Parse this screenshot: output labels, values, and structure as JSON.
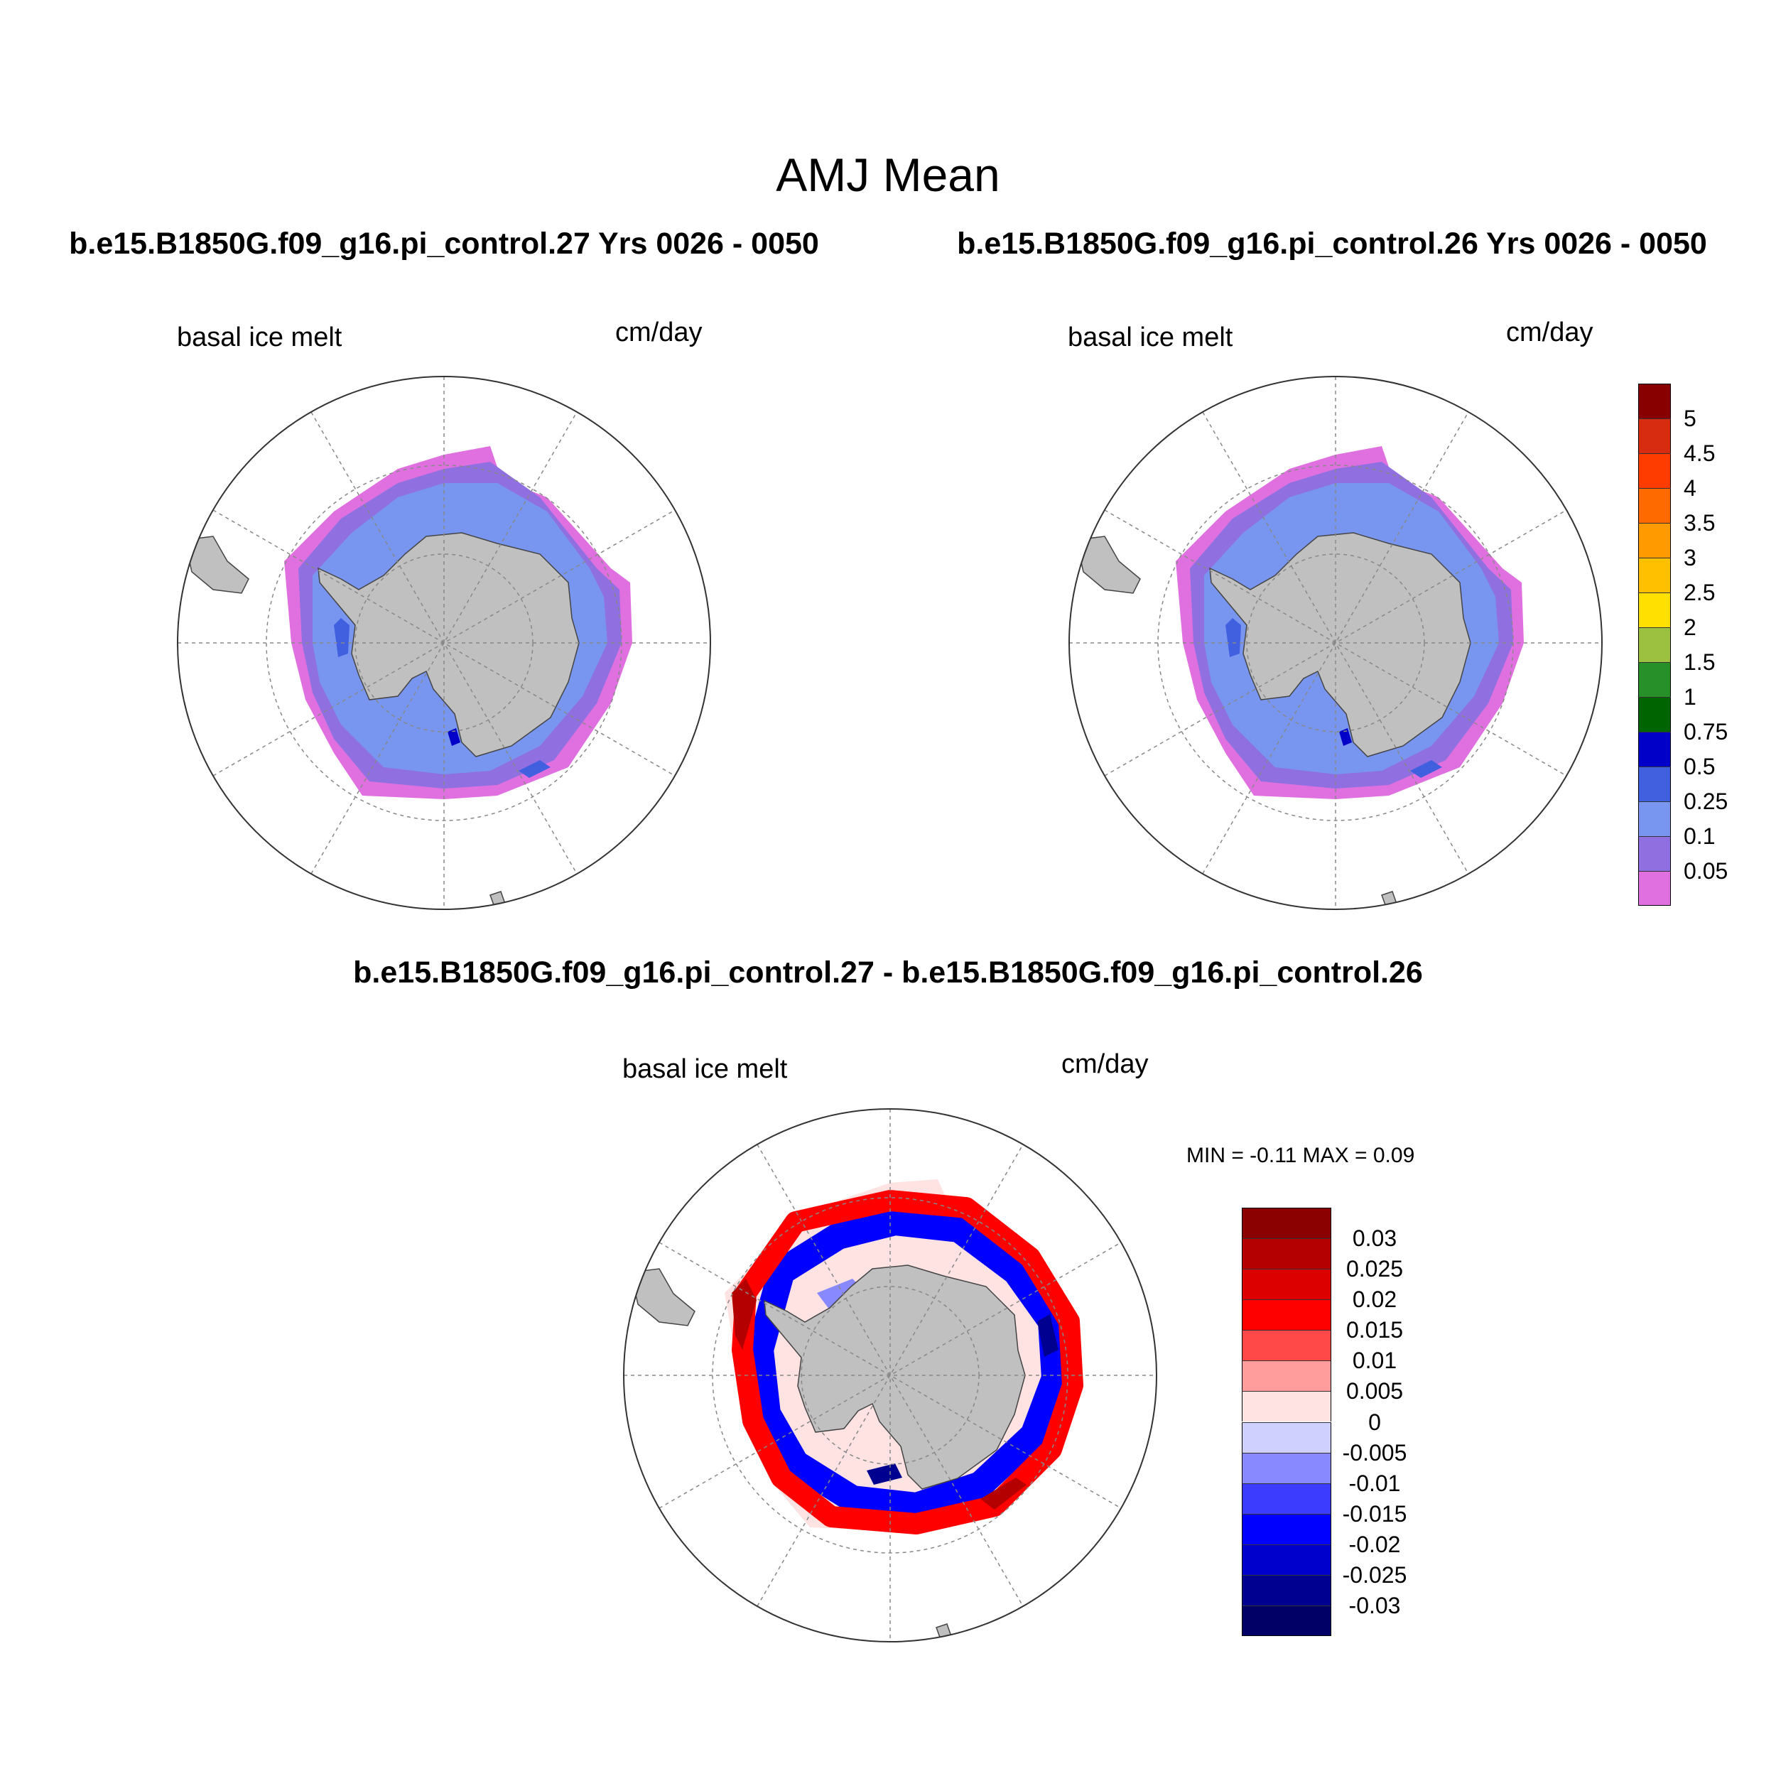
{
  "figure_title": "AMJ Mean",
  "panels": [
    {
      "title": "b.e15.B1850G.f09_g16.pi_control.27  Yrs 0026 - 0050",
      "left_label": "basal ice melt",
      "right_label": "cm/day"
    },
    {
      "title": "b.e15.B1850G.f09_g16.pi_control.26  Yrs 0026 - 0050",
      "left_label": "basal ice melt",
      "right_label": "cm/day"
    },
    {
      "title": "b.e15.B1850G.f09_g16.pi_control.27 - b.e15.B1850G.f09_g16.pi_control.26",
      "left_label": "basal ice melt",
      "right_label": "cm/day",
      "stats": "MIN =  -0.11 MAX =   0.09"
    }
  ],
  "colorbar_mean": {
    "labels": [
      "5",
      "4.5",
      "4",
      "3.5",
      "3",
      "2.5",
      "2",
      "1.5",
      "1",
      "0.75",
      "0.5",
      "0.25",
      "0.1",
      "0.05"
    ],
    "colors": [
      "#880000",
      "#d82c10",
      "#ff3c00",
      "#ff6a00",
      "#ff9a00",
      "#ffc000",
      "#ffe000",
      "#9cc040",
      "#289028",
      "#006400",
      "#0000c8",
      "#4060e0",
      "#7896f0",
      "#9070e0",
      "#e070e0"
    ]
  },
  "colorbar_diff": {
    "labels": [
      "0.03",
      "0.025",
      "0.02",
      "0.015",
      "0.01",
      "0.005",
      "0",
      "-0.005",
      "-0.01",
      "-0.015",
      "-0.02",
      "-0.025",
      "-0.03"
    ],
    "colors": [
      "#8b0000",
      "#b40000",
      "#dc0000",
      "#ff0000",
      "#ff4848",
      "#ff9c9c",
      "#ffe2e2",
      "#d0d0ff",
      "#8888ff",
      "#3c3cff",
      "#0000ff",
      "#0000cc",
      "#000090",
      "#000066"
    ]
  },
  "colors": {
    "land": "#c0c0c0",
    "grid": "#888888",
    "background": "#ffffff"
  }
}
